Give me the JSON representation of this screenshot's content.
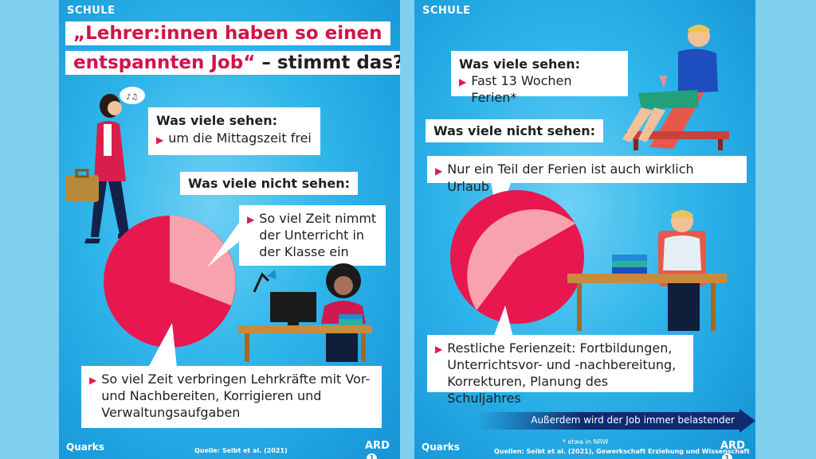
{
  "panel_left": {
    "section": "SCHULE",
    "title_line1": "„Lehrer:innen haben so einen",
    "title_line2_highlight": "entspannten Job“",
    "title_line2_rest": " – stimmt das?",
    "seen_label": "Was viele sehen:",
    "seen_item": "um die Mittagszeit frei",
    "not_seen_label": "Was viele nicht sehen:",
    "teaching_text": "So viel Zeit nimmt der Unterricht in der Klasse ein",
    "other_text": "So viel Zeit verbringen Lehrkräfte mit Vor- und Nachbereiten, Korrigieren und Verwaltungsaufgaben",
    "logo": "Quarks",
    "source": "Quelle: Seibt et al. (2021)",
    "broadcaster": "ARD"
  },
  "panel_right": {
    "section": "SCHULE",
    "seen_label": "Was viele sehen:",
    "seen_item": "Fast 13 Wochen Ferien*",
    "not_seen_label": "Was viele nicht sehen:",
    "vacation_text": "Nur ein Teil der Ferien ist auch wirklich Urlaub",
    "rest_text": "Restliche Ferienzeit: Fortbildungen, Unterrichtsvor- und -nachbereitung, Korrekturen, Planung des Schuljahres",
    "banner": "Außerdem wird der Job immer belastender",
    "footnote": "* etwa in NRW",
    "source": "Quellen: Seibt et al. (2021), Gewerkschaft Erziehung und Wissenschaft",
    "logo": "Quarks",
    "broadcaster": "ARD"
  },
  "colors": {
    "pink_dark": "#e8174f",
    "pink_light": "#f7a2ad",
    "bg": "#7fd0ee"
  }
}
